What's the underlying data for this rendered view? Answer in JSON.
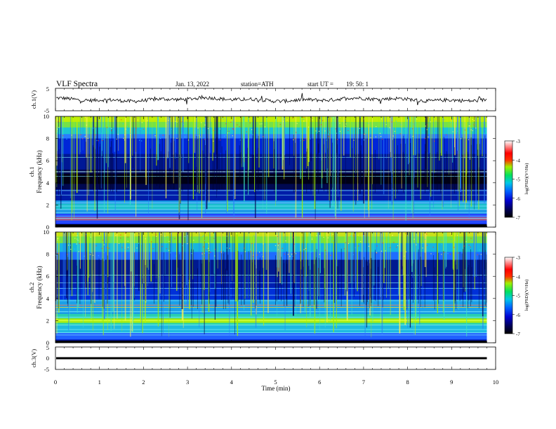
{
  "header": {
    "title": "VLF  Spectra",
    "date": "Jan.  13,  2022",
    "station": "station=ATH",
    "start_label": "start  UT  =",
    "start_time": "19: 50: 1"
  },
  "chart_data": [
    {
      "id": "ch1-waveform",
      "type": "line",
      "ylabel": "ch.1(V)",
      "ylim": [
        -5,
        5
      ],
      "ytick_labels": [
        "5",
        "-5"
      ],
      "xlim": [
        0,
        10
      ],
      "signal_end_min": 9.8,
      "baseline_v": 0.0,
      "colors": {
        "line": "#000000"
      }
    },
    {
      "id": "ch1-spectrogram",
      "type": "heatmap",
      "ylabel": "ch.1\nFrequency  (kHz)",
      "ylabel_parts": [
        "ch.1",
        "Frequency  (kHz)"
      ],
      "ylim": [
        0,
        10
      ],
      "ytick_labels": [
        "10",
        "8",
        "6",
        "4",
        "2",
        "0"
      ],
      "xlim": [
        0,
        10
      ],
      "data_end_min": 9.8,
      "colorbar": {
        "label": "log(PSD)(V²/Hz)",
        "min": -7,
        "max": -3,
        "tick_labels": [
          "-3",
          "-4",
          "-5",
          "-6",
          "-7"
        ]
      }
    },
    {
      "id": "ch2-spectrogram",
      "type": "heatmap",
      "ylabel": "ch.2\nFrequency  (kHz)",
      "ylabel_parts": [
        "ch.2",
        "Frequency  (kHz)"
      ],
      "ylim": [
        0,
        10
      ],
      "ytick_labels": [
        "10",
        "8",
        "6",
        "4",
        "2",
        "0"
      ],
      "xlim": [
        0,
        10
      ],
      "data_end_min": 9.8,
      "colorbar": {
        "label": "log(PSD)(V²/Hz)",
        "min": -7,
        "max": -3,
        "tick_labels": [
          "-3",
          "-4",
          "-5",
          "-6",
          "-7"
        ]
      }
    },
    {
      "id": "ch3-waveform",
      "type": "line",
      "ylabel": "ch.3(V)",
      "ylim": [
        -5,
        5
      ],
      "ytick_labels": [
        "5",
        "0",
        "-5"
      ],
      "xlim": [
        0,
        10
      ],
      "signal_end_min": 9.8,
      "baseline_v": 0.0,
      "colors": {
        "line": "#000000"
      }
    }
  ],
  "x_axis": {
    "label": "Time  (min)",
    "tick_labels": [
      "0",
      "1",
      "2",
      "3",
      "4",
      "5",
      "6",
      "7",
      "8",
      "9",
      "10"
    ]
  }
}
